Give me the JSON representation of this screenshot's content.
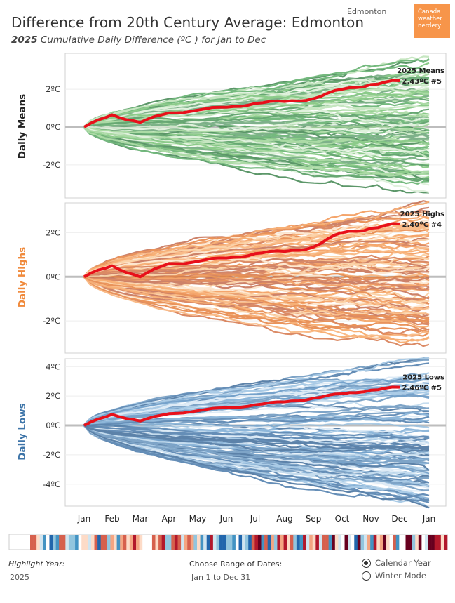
{
  "header": {
    "title": "Difference from 20th Century Average: Edmonton",
    "subtitle_year": "2025",
    "subtitle_rest": "Cumulative Daily Difference (ºC ) for Jan to Dec",
    "city": "Edmonton",
    "logo_line1": "Canada",
    "logo_line2": "weather",
    "logo_line3": "nerdery"
  },
  "colors": {
    "highlight": "#e8101a",
    "means": "#3f9a4a",
    "highs": "#f08a3c",
    "lows": "#3d74a8",
    "stripe_cold": "#2166ac",
    "stripe_warm": "#b2182b"
  },
  "chart_data": [
    {
      "type": "line",
      "panel": "means",
      "ylabel": "Daily Means",
      "y_ticks": [
        "2ºC",
        "0ºC",
        "-2ºC"
      ],
      "y_tick_values": [
        2,
        0,
        -2
      ],
      "ylim": [
        -3.6,
        3.6
      ],
      "x_ticks": [
        "Jan",
        "Feb",
        "Mar",
        "Apr",
        "May",
        "Jun",
        "Jul",
        "Aug",
        "Sep",
        "Oct",
        "Nov",
        "Dec",
        "Jan"
      ],
      "highlight_label": "2025 Means",
      "highlight_value": "2.43ºC #5",
      "background_years_range": [
        -3.2,
        3.2
      ],
      "series": [
        {
          "name": "2025",
          "x": [
            "Jan",
            "Feb",
            "Mar",
            "Apr",
            "May",
            "Jun",
            "Jul",
            "Aug",
            "Sep",
            "Oct",
            "Nov",
            "Dec"
          ],
          "values": [
            0.0,
            0.65,
            0.25,
            0.75,
            0.9,
            1.05,
            1.25,
            1.35,
            1.5,
            2.0,
            2.25,
            2.45
          ]
        }
      ]
    },
    {
      "type": "line",
      "panel": "highs",
      "ylabel": "Daily Highs",
      "y_ticks": [
        "2ºC",
        "0ºC",
        "-2ºC"
      ],
      "y_tick_values": [
        2,
        0,
        -2
      ],
      "ylim": [
        -3.3,
        3.0
      ],
      "x_ticks": [
        "Jan",
        "Feb",
        "Mar",
        "Apr",
        "May",
        "Jun",
        "Jul",
        "Aug",
        "Sep",
        "Oct",
        "Nov",
        "Dec",
        "Jan"
      ],
      "highlight_label": "2025 Highs",
      "highlight_value": "2.40ºC #4",
      "background_years_range": [
        -3.1,
        3.0
      ],
      "series": [
        {
          "name": "2025",
          "x": [
            "Jan",
            "Feb",
            "Mar",
            "Apr",
            "May",
            "Jun",
            "Jul",
            "Aug",
            "Sep",
            "Oct",
            "Nov",
            "Dec"
          ],
          "values": [
            0.0,
            0.5,
            0.0,
            0.6,
            0.7,
            0.85,
            1.05,
            1.15,
            1.35,
            2.0,
            2.2,
            2.4
          ]
        }
      ]
    },
    {
      "type": "line",
      "panel": "lows",
      "ylabel": "Daily Lows",
      "y_ticks": [
        "4ºC",
        "2ºC",
        "0ºC",
        "-2ºC",
        "-4ºC"
      ],
      "y_tick_values": [
        4,
        2,
        0,
        -2,
        -4
      ],
      "ylim": [
        -5.3,
        4.3
      ],
      "x_ticks": [
        "Jan",
        "Feb",
        "Mar",
        "Apr",
        "May",
        "Jun",
        "Jul",
        "Aug",
        "Sep",
        "Oct",
        "Nov",
        "Dec",
        "Jan"
      ],
      "highlight_label": "2025 Lows",
      "highlight_value": "2.46ºC #5",
      "background_years_range": [
        -5.0,
        4.0
      ],
      "series": [
        {
          "name": "2025",
          "x": [
            "Jan",
            "Feb",
            "Mar",
            "Apr",
            "May",
            "Jun",
            "Jul",
            "Aug",
            "Sep",
            "Oct",
            "Nov",
            "Dec"
          ],
          "values": [
            0.0,
            0.75,
            0.3,
            0.8,
            1.0,
            1.2,
            1.4,
            1.6,
            1.85,
            2.15,
            2.4,
            2.6
          ]
        }
      ]
    }
  ],
  "controls": {
    "highlight_label": "Highlight Year:",
    "highlight_value": "2025",
    "range_label": "Choose Range of Dates:",
    "range_value": "Jan 1 to Dec 31",
    "mode_calendar": "Calendar Year",
    "mode_winter": "Winter Mode",
    "selected_mode": "Calendar Year"
  }
}
